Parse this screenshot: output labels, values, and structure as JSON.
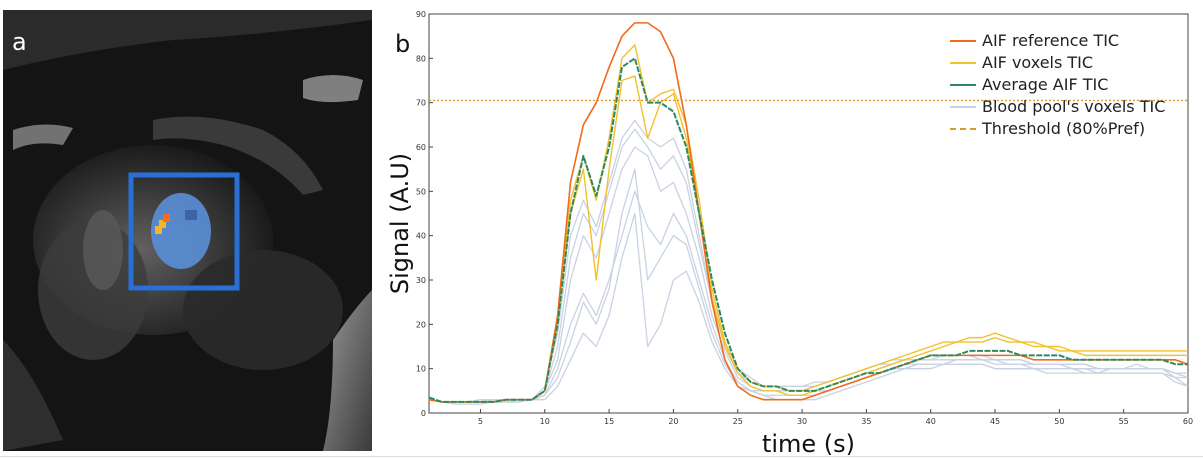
{
  "panel_a": {
    "letter": "a",
    "roi_color": "#2a6fd6",
    "blood_pool_color": "#5b8fd8",
    "aif_voxel_colors": [
      "#f5b42a",
      "#ff6a1a"
    ]
  },
  "panel_b": {
    "letter": "b"
  },
  "chart_data": {
    "type": "line",
    "xlabel": "time (s)",
    "ylabel": "Signal (A.U)",
    "xlim": [
      1,
      60
    ],
    "ylim": [
      0,
      90
    ],
    "xticks": [
      5,
      10,
      15,
      20,
      25,
      30,
      35,
      40,
      45,
      50,
      55,
      60
    ],
    "yticks": [
      0,
      10,
      20,
      30,
      40,
      50,
      60,
      70,
      80,
      90
    ],
    "legend_position": "top-right",
    "grid": false,
    "threshold": {
      "name": "Threshold (80%Pref)",
      "value": 70.5,
      "color": "#d99b2b"
    },
    "series": [
      {
        "name": "Blood pool's voxels TIC",
        "color": "#c9d2e3",
        "group": "blood",
        "lines": [
          [
            3,
            2.5,
            2.5,
            2.5,
            2.5,
            2.5,
            2.5,
            2.5,
            3,
            4,
            10,
            20,
            27,
            22,
            30,
            40,
            50,
            42,
            38,
            45,
            40,
            30,
            20,
            12,
            7,
            5,
            4,
            4,
            4,
            4,
            4,
            5,
            6,
            7,
            8,
            9,
            10,
            11,
            11,
            11,
            11,
            12,
            12,
            12,
            11,
            11,
            11,
            10,
            10,
            10,
            10,
            9,
            9,
            10,
            10,
            11,
            10,
            10,
            8,
            8
          ],
          [
            3,
            2.5,
            2,
            2,
            2,
            2.5,
            2.5,
            2.5,
            3,
            3,
            6,
            12,
            18,
            15,
            22,
            35,
            45,
            15,
            20,
            30,
            32,
            25,
            16,
            10,
            6,
            5,
            4,
            3,
            3,
            3,
            3,
            4,
            5,
            6,
            7,
            8,
            9,
            10,
            10,
            10,
            11,
            11,
            11,
            11,
            10,
            10,
            10,
            10,
            9,
            9,
            9,
            9,
            9,
            9,
            9,
            9,
            9,
            9,
            7,
            6
          ],
          [
            3,
            2.5,
            2.5,
            2.5,
            3,
            3,
            3,
            3,
            3,
            5,
            12,
            30,
            40,
            35,
            45,
            55,
            60,
            58,
            50,
            52,
            45,
            35,
            22,
            14,
            8,
            6,
            5,
            5,
            5,
            5,
            5,
            6,
            7,
            8,
            9,
            10,
            11,
            12,
            12,
            12,
            13,
            13,
            13,
            13,
            12,
            12,
            12,
            11,
            11,
            11,
            11,
            11,
            10,
            10,
            10,
            10,
            10,
            10,
            9,
            9
          ],
          [
            3,
            2.5,
            2.5,
            2.5,
            2.5,
            2.5,
            3,
            3,
            3,
            5,
            15,
            35,
            45,
            40,
            50,
            60,
            64,
            60,
            55,
            58,
            52,
            38,
            25,
            16,
            9,
            7,
            6,
            6,
            6,
            6,
            6,
            7,
            8,
            9,
            10,
            11,
            12,
            12,
            12,
            13,
            13,
            13,
            13,
            12,
            12,
            12,
            12,
            11,
            11,
            11,
            11,
            11,
            10,
            10,
            10,
            10,
            10,
            10,
            9,
            8
          ],
          [
            3,
            2.5,
            2.5,
            2.5,
            2.5,
            3,
            3,
            3,
            3,
            6,
            18,
            40,
            48,
            42,
            52,
            62,
            66,
            62,
            60,
            62,
            55,
            40,
            25,
            15,
            10,
            8,
            6,
            6,
            6,
            6,
            7,
            7,
            8,
            9,
            10,
            11,
            11,
            12,
            12,
            12,
            12,
            12,
            12,
            12,
            12,
            11,
            11,
            11,
            11,
            11,
            10,
            10,
            10,
            10,
            10,
            10,
            10,
            10,
            9,
            9
          ],
          [
            3,
            2.5,
            2.5,
            2.5,
            2.5,
            2.5,
            2.5,
            3,
            3,
            4,
            8,
            16,
            25,
            20,
            28,
            45,
            55,
            30,
            35,
            40,
            38,
            28,
            18,
            11,
            7,
            5,
            5,
            5,
            5,
            5,
            5,
            5,
            6,
            7,
            8,
            9,
            10,
            10,
            11,
            11,
            11,
            11,
            11,
            11,
            10,
            10,
            10,
            10,
            10,
            10,
            10,
            10,
            9,
            9,
            9,
            9,
            9,
            9,
            8,
            6
          ]
        ]
      },
      {
        "name": "AIF voxels TIC",
        "color": "#f2c12e",
        "group": "aif",
        "lines": [
          [
            3,
            2.5,
            2.5,
            2.5,
            2.5,
            2.5,
            3,
            3,
            3,
            5,
            20,
            45,
            55,
            30,
            55,
            75,
            76,
            62,
            70,
            72,
            62,
            45,
            26,
            15,
            9,
            6,
            5,
            5,
            4,
            4,
            5,
            6,
            7,
            8,
            9,
            10,
            11,
            12,
            13,
            14,
            15,
            16,
            16,
            16,
            17,
            16,
            16,
            15,
            15,
            14,
            14,
            13,
            13,
            13,
            13,
            13,
            13,
            13,
            13,
            13
          ],
          [
            3,
            2.5,
            2.5,
            2.5,
            2.5,
            2.5,
            3,
            3,
            3,
            5,
            22,
            48,
            58,
            48,
            62,
            80,
            83,
            70,
            72,
            73,
            65,
            48,
            28,
            16,
            10,
            7,
            6,
            6,
            5,
            5,
            6,
            7,
            8,
            9,
            10,
            11,
            12,
            13,
            14,
            15,
            16,
            16,
            17,
            17,
            18,
            17,
            16,
            16,
            15,
            15,
            14,
            14,
            14,
            14,
            14,
            14,
            14,
            14,
            14,
            14
          ]
        ]
      },
      {
        "name": "AIF reference TIC",
        "color": "#f26a1b",
        "group": "ref",
        "lines": [
          [
            3,
            2.5,
            2.5,
            2.5,
            2.5,
            2.5,
            3,
            3,
            3,
            5,
            22,
            52,
            65,
            70,
            78,
            85,
            88,
            88,
            86,
            80,
            65,
            45,
            25,
            12,
            6,
            4,
            3,
            3,
            3,
            3,
            4,
            5,
            6,
            7,
            8,
            9,
            10,
            11,
            12,
            13,
            13,
            13,
            13,
            13,
            13,
            13,
            13,
            12,
            12,
            12,
            12,
            12,
            12,
            12,
            12,
            12,
            12,
            12,
            12,
            11
          ]
        ]
      },
      {
        "name": "Average AIF TIC",
        "color": "#2e8a5e",
        "group": "avg",
        "lines": [
          [
            3.5,
            2.5,
            2.5,
            2.5,
            2.5,
            2.5,
            3,
            3,
            3,
            5,
            20,
            45,
            58,
            49,
            60,
            78,
            80,
            70,
            70,
            68,
            60,
            45,
            30,
            18,
            10,
            7,
            6,
            6,
            5,
            5,
            5,
            6,
            7,
            8,
            9,
            9,
            10,
            11,
            12,
            13,
            13,
            13,
            14,
            14,
            14,
            14,
            13,
            13,
            13,
            13,
            12,
            12,
            12,
            12,
            12,
            12,
            12,
            12,
            11,
            11
          ]
        ]
      }
    ],
    "legend_order": [
      "AIF reference TIC",
      "AIF voxels TIC",
      "Average AIF TIC",
      "Blood pool's voxels TIC",
      "Threshold (80%Pref)"
    ]
  }
}
